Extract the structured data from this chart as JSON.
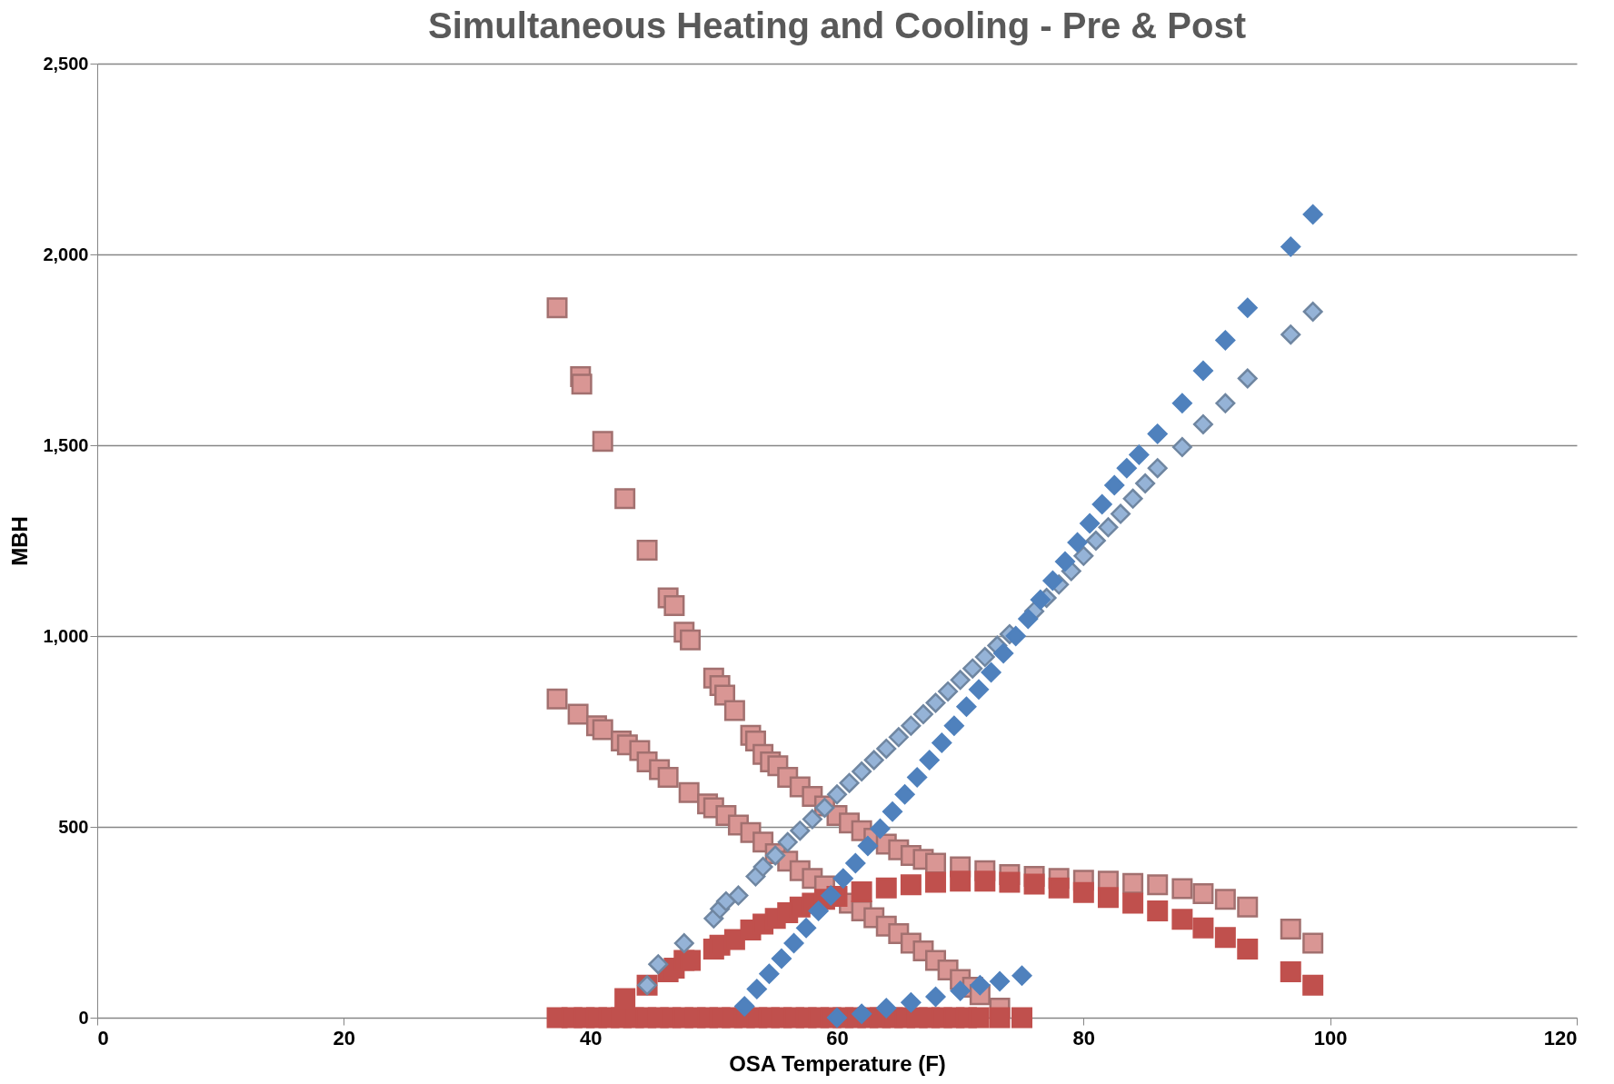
{
  "chart_data": {
    "type": "scatter",
    "title": "Simultaneous Heating and Cooling - Pre & Post",
    "xlabel": "OSA Temperature (F)",
    "ylabel": "MBH",
    "xlim": [
      0,
      120
    ],
    "xticks": [
      0,
      20,
      40,
      60,
      80,
      100,
      120
    ],
    "ylim": [
      0,
      2500
    ],
    "yticks": [
      0,
      {
        "value": 500,
        "label": "500"
      },
      {
        "value": 1000,
        "label": "1,000"
      },
      {
        "value": 1500,
        "label": "1,500"
      },
      {
        "value": 2000,
        "label": "2,000"
      },
      {
        "value": 2500,
        "label": "2,500"
      }
    ],
    "grid": "y",
    "series": [
      {
        "color": "#d99694",
        "marker": "square",
        "x": [
          37.3,
          39.2,
          39.3,
          41,
          42.8,
          44.6,
          46.3,
          46.8,
          47.6,
          48.1,
          50,
          50.5,
          50.9,
          51.7,
          53,
          53.4,
          54,
          54.6,
          55.2,
          56,
          57,
          58,
          59,
          60,
          61,
          62,
          63,
          64,
          65,
          66,
          67,
          68,
          70,
          72,
          74,
          76,
          78,
          80,
          82,
          84,
          86,
          88,
          89.7,
          91.5,
          93.3,
          96.8,
          98.6,
          37.3,
          39,
          40.5,
          41,
          42.5,
          43,
          44,
          44.6,
          45.6,
          46.3,
          48,
          49.5,
          50,
          51,
          52,
          53,
          54,
          55,
          56,
          57,
          58,
          59,
          61,
          62,
          63,
          64,
          65,
          66,
          67,
          68,
          69,
          70,
          71,
          71.6,
          73.2
        ],
        "values": [
          1860,
          1680,
          1660,
          1510,
          1360,
          1225,
          1100,
          1080,
          1010,
          990,
          890,
          870,
          845,
          805,
          740,
          725,
          690,
          670,
          660,
          630,
          605,
          580,
          555,
          530,
          510,
          490,
          470,
          455,
          440,
          425,
          415,
          405,
          395,
          385,
          375,
          370,
          365,
          360,
          358,
          352,
          348,
          338,
          325,
          310,
          290,
          232,
          195,
          835,
          795,
          765,
          755,
          725,
          715,
          700,
          670,
          650,
          630,
          590,
          560,
          550,
          530,
          505,
          485,
          460,
          430,
          410,
          385,
          365,
          345,
          300,
          280,
          262,
          240,
          220,
          195,
          175,
          150,
          125,
          100,
          80,
          60,
          25
        ]
      },
      {
        "color": "#c0504d",
        "marker": "square",
        "x": [
          37.3,
          38.5,
          39.5,
          40.5,
          41.5,
          42.5,
          43.5,
          44.5,
          45.5,
          46.5,
          47.5,
          48.5,
          49.5,
          50.5,
          51.5,
          52.5,
          53.5,
          54.5,
          55.5,
          56.5,
          57.5,
          58.5,
          59.5,
          60.5,
          61.5,
          62.5,
          63.5,
          64.5,
          65.5,
          66.5,
          67.5,
          68.5,
          69.5,
          70.5,
          71.5,
          73.2,
          75,
          42.8,
          44.6,
          46.3,
          46.8,
          47.6,
          48.1,
          50,
          50.5,
          51.7,
          53,
          54,
          55,
          56,
          57,
          58,
          59,
          60,
          62,
          64,
          66,
          68,
          70,
          72,
          74,
          76,
          78,
          80,
          82,
          84,
          86,
          88,
          89.7,
          91.5,
          93.3,
          96.8,
          98.6
        ],
        "values": [
          0,
          0,
          0,
          0,
          0,
          0,
          0,
          0,
          0,
          0,
          0,
          0,
          0,
          0,
          0,
          0,
          0,
          0,
          0,
          0,
          0,
          0,
          0,
          0,
          0,
          0,
          0,
          0,
          0,
          0,
          0,
          0,
          0,
          0,
          0,
          0,
          0,
          50,
          85,
          120,
          130,
          150,
          150,
          180,
          190,
          205,
          230,
          245,
          260,
          275,
          290,
          300,
          310,
          318,
          330,
          340,
          348,
          355,
          358,
          358,
          355,
          350,
          340,
          328,
          315,
          300,
          280,
          258,
          235,
          210,
          180,
          120,
          85
        ]
      },
      {
        "color": "#95b3d7",
        "marker": "diamond",
        "x": [
          44.6,
          45.5,
          47.6,
          50,
          50.5,
          51,
          52,
          53.4,
          54,
          55,
          56,
          57,
          58,
          59,
          60,
          61,
          62,
          63,
          64,
          65,
          66,
          67,
          68,
          69,
          70,
          71,
          72,
          73,
          74,
          75,
          76,
          77,
          78,
          79,
          80,
          81,
          82,
          83,
          84,
          85,
          86,
          88,
          89.7,
          91.5,
          93.3,
          96.8,
          98.6
        ],
        "values": [
          85,
          140,
          195,
          260,
          285,
          305,
          320,
          370,
          395,
          425,
          460,
          490,
          520,
          550,
          585,
          615,
          645,
          675,
          705,
          735,
          765,
          795,
          825,
          855,
          885,
          915,
          945,
          975,
          1005,
          null,
          1065,
          1100,
          1135,
          1170,
          1210,
          1250,
          1285,
          1320,
          1360,
          1400,
          1440,
          1495,
          1555,
          1610,
          1675,
          1790,
          1850
        ]
      },
      {
        "color": "#4f81bd",
        "marker": "diamond",
        "x": [
          52.5,
          53.5,
          54.5,
          55.5,
          56.5,
          57.5,
          58.5,
          59.5,
          60.5,
          61.5,
          62.5,
          63.5,
          64.5,
          65.5,
          66.5,
          67.5,
          68.5,
          69.5,
          70.5,
          71.5,
          72.5,
          73.5,
          74.5,
          75.5,
          76.5,
          77.5,
          78.5,
          79.5,
          80.5,
          81.5,
          82.5,
          83.5,
          84.5,
          86,
          88,
          89.7,
          91.5,
          93.3,
          96.8,
          98.6,
          60,
          62,
          64,
          66,
          68,
          70,
          71.6,
          73.2,
          75
        ],
        "values": [
          30,
          75,
          115,
          155,
          195,
          235,
          280,
          320,
          365,
          405,
          450,
          495,
          540,
          585,
          630,
          675,
          720,
          765,
          815,
          860,
          905,
          955,
          1000,
          1045,
          1095,
          1145,
          1195,
          1245,
          1295,
          1345,
          1395,
          1440,
          1475,
          1530,
          1610,
          1695,
          1775,
          1860,
          2020,
          2105,
          0,
          10,
          25,
          40,
          55,
          70,
          85,
          95,
          110
        ]
      }
    ]
  }
}
